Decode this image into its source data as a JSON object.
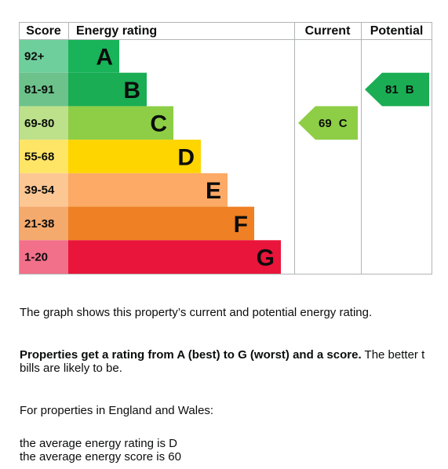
{
  "chart_data": {
    "type": "epc",
    "headers": [
      "Score",
      "Energy rating",
      "Current",
      "Potential"
    ],
    "bands": [
      {
        "score": "92+",
        "letter": "A",
        "color": "#19b459",
        "light": "#6fcf9c"
      },
      {
        "score": "81-91",
        "letter": "B",
        "color": "#1bad54",
        "light": "#6cc28a"
      },
      {
        "score": "69-80",
        "letter": "C",
        "color": "#8dce46",
        "light": "#bde08a"
      },
      {
        "score": "55-68",
        "letter": "D",
        "color": "#ffd500",
        "light": "#ffe566"
      },
      {
        "score": "39-54",
        "letter": "E",
        "color": "#fcaa65",
        "light": "#fdc794"
      },
      {
        "score": "21-38",
        "letter": "F",
        "color": "#ef8023",
        "light": "#f4a96d"
      },
      {
        "score": "1-20",
        "letter": "G",
        "color": "#e9153b",
        "light": "#f2708a"
      }
    ],
    "current": {
      "score": 69,
      "letter": "C"
    },
    "potential": {
      "score": 81,
      "letter": "B"
    }
  },
  "text": {
    "p1": "The graph shows this property’s current and potential energy rating.",
    "p2_bold": "Properties get a rating from A (best) to G (worst) and a score.",
    "p2_rest": "The better t",
    "p2_line2": "bills are likely to be.",
    "p3": "For properties in England and Wales:",
    "p4_line1": "the average energy rating is D",
    "p4_line2": "the average energy score is 60"
  }
}
